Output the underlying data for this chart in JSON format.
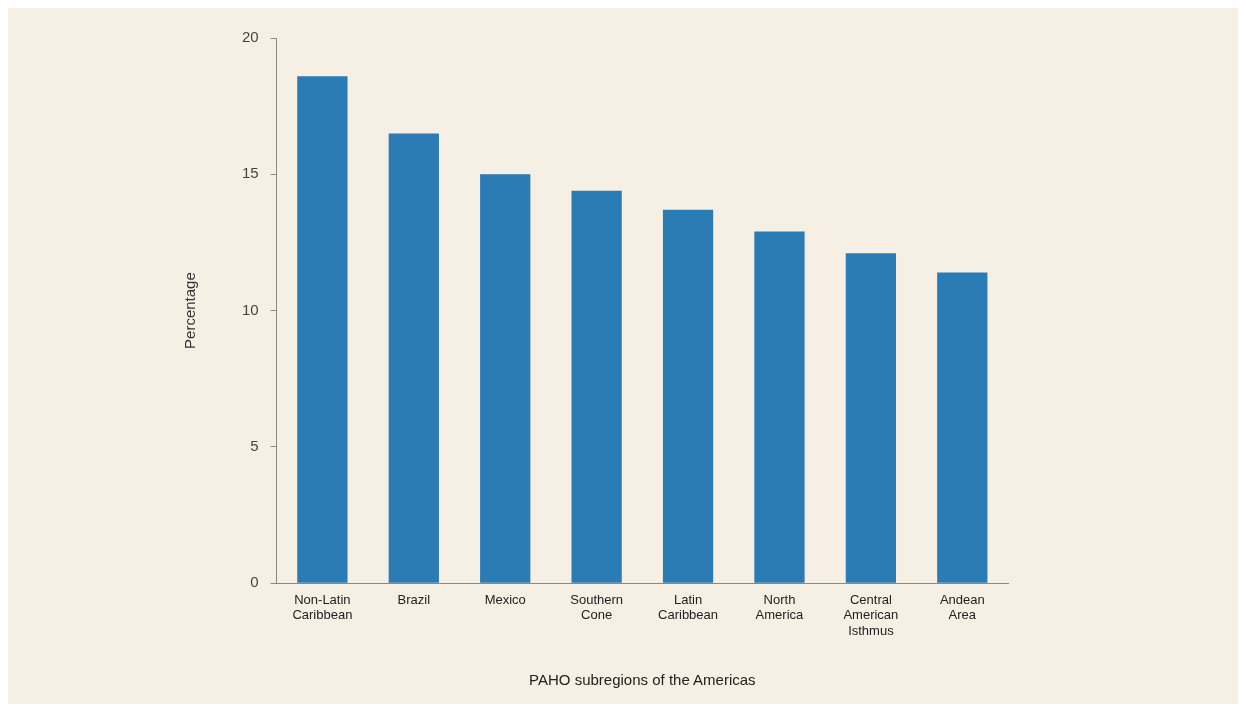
{
  "chart_data": {
    "type": "bar",
    "xlabel": "PAHO subregions of the Americas",
    "ylabel": "Percentage",
    "categories": [
      "Non-Latin Caribbean",
      "Brazil",
      "Mexico",
      "Southern Cone",
      "Latin Caribbean",
      "North America",
      "Central American Isthmus",
      "Andean Area"
    ],
    "values": [
      18.6,
      16.5,
      15.0,
      14.4,
      13.7,
      12.9,
      12.1,
      11.4
    ],
    "color": "#2b7bb4",
    "ylim": [
      0,
      20
    ],
    "yticks": [
      0,
      5,
      10,
      15,
      20
    ],
    "grid": false,
    "legend": false
  }
}
